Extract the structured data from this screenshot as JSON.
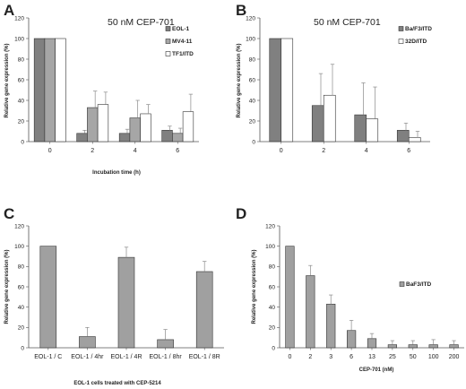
{
  "colors": {
    "dark": "#808080",
    "medium": "#a6a6a6",
    "white": "#ffffff",
    "single": "#a0a0a0",
    "edge": "#333333",
    "error": "#8a8a8a"
  },
  "chart_data": [
    {
      "letter": "A",
      "type": "bar",
      "title": "50 nM CEP-701",
      "xlabel": "Incubation time (h)",
      "ylabel": "Relative gene expression (%)",
      "ylim": [
        0,
        120
      ],
      "yticks": [
        0,
        20,
        40,
        60,
        80,
        100,
        120
      ],
      "categories": [
        "0",
        "2",
        "4",
        "6"
      ],
      "legend_position": "top-right",
      "series": [
        {
          "name": "EOL-1",
          "color": "#808080",
          "values": [
            100,
            8,
            8,
            11
          ],
          "errors": [
            0,
            3,
            4,
            4
          ]
        },
        {
          "name": "MV4-11",
          "color": "#a6a6a6",
          "values": [
            100,
            33,
            23,
            8
          ],
          "errors": [
            0,
            16,
            17,
            5
          ]
        },
        {
          "name": "TF1/ITD",
          "color": "#ffffff",
          "values": [
            100,
            36,
            27,
            29
          ],
          "errors": [
            0,
            12,
            9,
            17
          ]
        }
      ]
    },
    {
      "letter": "B",
      "type": "bar",
      "title": "50 nM CEP-701",
      "xlabel": "",
      "ylabel": "Relative gene expression (%)",
      "ylim": [
        0,
        120
      ],
      "yticks": [
        0,
        20,
        40,
        60,
        80,
        100,
        120
      ],
      "categories": [
        "0",
        "2",
        "4",
        "6"
      ],
      "legend_position": "top-right",
      "series": [
        {
          "name": "Ba/F3/ITD",
          "color": "#808080",
          "values": [
            100,
            35,
            26,
            11
          ],
          "errors": [
            0,
            31,
            31,
            7
          ]
        },
        {
          "name": "32D/ITD",
          "color": "#ffffff",
          "values": [
            100,
            45,
            22,
            4
          ],
          "errors": [
            0,
            30,
            31,
            6
          ]
        }
      ]
    },
    {
      "letter": "C",
      "type": "bar",
      "title": "",
      "xlabel": "EOL-1 cells treated with CEP-5214",
      "ylabel": "Relative gene expression (%)",
      "ylim": [
        0,
        120
      ],
      "yticks": [
        0,
        20,
        40,
        60,
        80,
        100,
        120
      ],
      "categories": [
        "EOL-1 / C",
        "EOL-1 / 4hr",
        "EOL-1 / 4R",
        "EOL-1 / 8hr",
        "EOL-1 / 8R"
      ],
      "series": [
        {
          "color": "#a0a0a0",
          "values": [
            100,
            11,
            89,
            8,
            75
          ],
          "errors": [
            0,
            9,
            10,
            10,
            10
          ]
        }
      ]
    },
    {
      "letter": "D",
      "type": "bar",
      "title": "",
      "xlabel": "CEP-701 (nM)",
      "ylabel": "Relative gene expression (%)",
      "ylim": [
        0,
        120
      ],
      "yticks": [
        0,
        20,
        40,
        60,
        80,
        100,
        120
      ],
      "categories": [
        "0",
        "2",
        "3",
        "6",
        "13",
        "25",
        "50",
        "100",
        "200"
      ],
      "legend_position": "right",
      "series": [
        {
          "name": "BaF3/ITD",
          "color": "#a0a0a0",
          "values": [
            100,
            71,
            43,
            17,
            9,
            3,
            3,
            3,
            3
          ],
          "errors": [
            0,
            10,
            9,
            10,
            5,
            4,
            4,
            5,
            4
          ]
        }
      ]
    }
  ]
}
